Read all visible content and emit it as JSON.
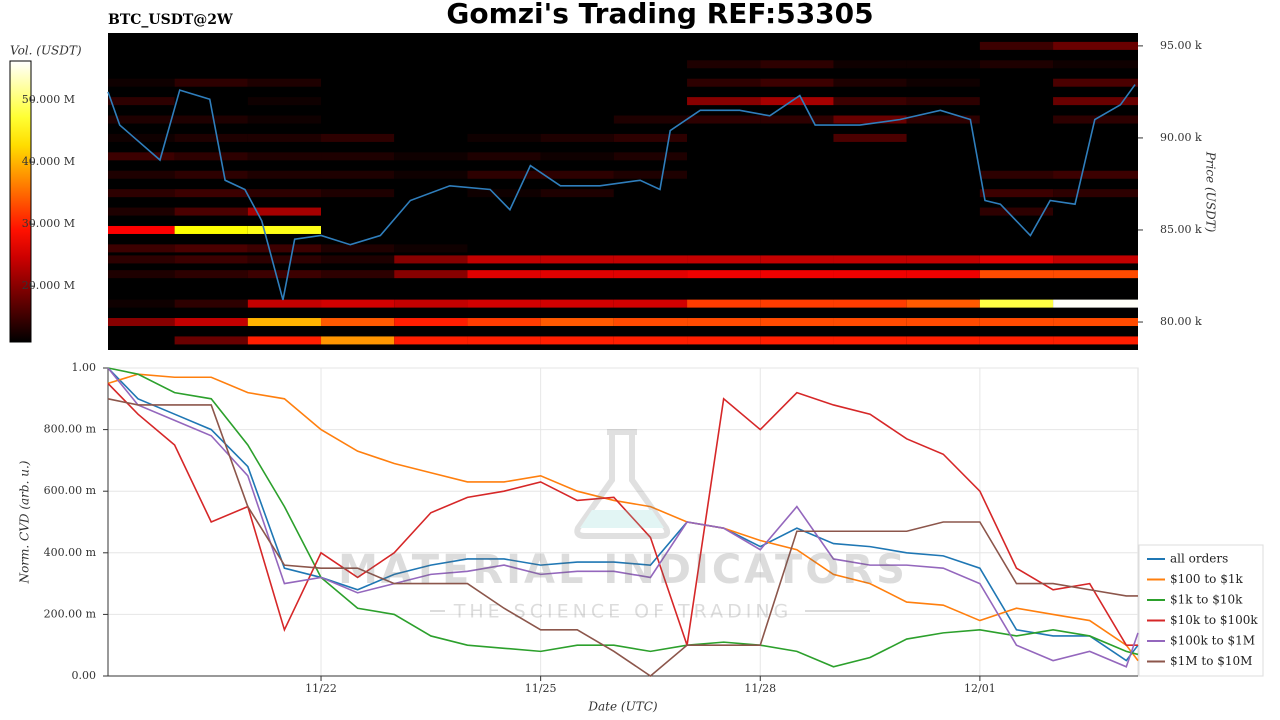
{
  "watermark": {
    "title": "MATERIAL INDICATORS",
    "subtitle": "THE SCIENCE OF TRADING"
  },
  "chart_data": [
    {
      "type": "heatmap",
      "title": "Gomzi's Trading REF:53305",
      "subtitle": "BTC_USDT@2W",
      "y_label": "Price (USDT)",
      "colorbar_label": "Vol. (USDT)",
      "colormap": "hot",
      "xlim": [
        -2.91,
        11.16
      ],
      "ylim": [
        78480,
        95700
      ],
      "yticks": [
        {
          "value": 80000,
          "label": "80.00 k"
        },
        {
          "value": 85000,
          "label": "85.00 k"
        },
        {
          "value": 90000,
          "label": "90.00 k"
        },
        {
          "value": 95000,
          "label": "95.00 k"
        }
      ],
      "zlim": [
        11000000,
        56300000
      ],
      "zticks": [
        {
          "value": 20000000,
          "label": "20.000 M"
        },
        {
          "value": 30000000,
          "label": "30.000 M"
        },
        {
          "value": 40000000,
          "label": "40.000 M"
        },
        {
          "value": 50000000,
          "label": "50.000 M"
        }
      ],
      "x_bins": [
        -2.91,
        -2,
        -1,
        0,
        1,
        2,
        3,
        4,
        5,
        6,
        7,
        8,
        9,
        10,
        11.16
      ],
      "y": [
        95000,
        94000,
        93000,
        92000,
        91000,
        90000,
        89000,
        88000,
        87000,
        86000,
        85000,
        84000,
        83400,
        82600,
        81000,
        80000,
        79000
      ],
      "z": [
        [
          0,
          0,
          0,
          0,
          0,
          0,
          0,
          0,
          0,
          0,
          0,
          0,
          15000000,
          18000000
        ],
        [
          0,
          0,
          0,
          0,
          0,
          0,
          0,
          0,
          13000000,
          14000000,
          12000000,
          12000000,
          13000000,
          12000000
        ],
        [
          12000000,
          14000000,
          13000000,
          0,
          0,
          0,
          0,
          0,
          14000000,
          15000000,
          13000000,
          12000000,
          0,
          16000000
        ],
        [
          14000000,
          0,
          12000000,
          0,
          0,
          0,
          0,
          0,
          20000000,
          22000000,
          15000000,
          14000000,
          0,
          18000000
        ],
        [
          13000000,
          13000000,
          12000000,
          0,
          0,
          0,
          0,
          13000000,
          14000000,
          14000000,
          18000000,
          14000000,
          0,
          14000000
        ],
        [
          12000000,
          13000000,
          13000000,
          14000000,
          0,
          12000000,
          13000000,
          14000000,
          0,
          0,
          16000000,
          0,
          0,
          0
        ],
        [
          15000000,
          14000000,
          13000000,
          13000000,
          12000000,
          13000000,
          12000000,
          13000000,
          0,
          0,
          0,
          0,
          0,
          0
        ],
        [
          13000000,
          14000000,
          13000000,
          13000000,
          12000000,
          14000000,
          14000000,
          13000000,
          0,
          0,
          0,
          0,
          14000000,
          15000000
        ],
        [
          14000000,
          15000000,
          14000000,
          13000000,
          0,
          12000000,
          13000000,
          0,
          0,
          0,
          0,
          0,
          15000000,
          14000000
        ],
        [
          13000000,
          16000000,
          22000000,
          0,
          0,
          0,
          0,
          0,
          0,
          0,
          0,
          0,
          14000000,
          0
        ],
        [
          28000000,
          45000000,
          46000000,
          0,
          0,
          0,
          0,
          0,
          0,
          0,
          0,
          0,
          0,
          0
        ],
        [
          15000000,
          16000000,
          15000000,
          13000000,
          12000000,
          0,
          0,
          0,
          0,
          0,
          0,
          0,
          0,
          0
        ],
        [
          14000000,
          15000000,
          14000000,
          13000000,
          20000000,
          24000000,
          24000000,
          24000000,
          24000000,
          24000000,
          24000000,
          24000000,
          26000000,
          24000000
        ],
        [
          13000000,
          14000000,
          15000000,
          14000000,
          20000000,
          26000000,
          26000000,
          26000000,
          27000000,
          27000000,
          27000000,
          27000000,
          33000000,
          33000000
        ],
        [
          12000000,
          14000000,
          24000000,
          25000000,
          24000000,
          25000000,
          25000000,
          25000000,
          32000000,
          32000000,
          32000000,
          34000000,
          48000000,
          56000000
        ],
        [
          20000000,
          24000000,
          40000000,
          34000000,
          30000000,
          32000000,
          34000000,
          33000000,
          33000000,
          33000000,
          33000000,
          33000000,
          33000000,
          33000000
        ],
        [
          0,
          18000000,
          30000000,
          38000000,
          30000000,
          30000000,
          30000000,
          30000000,
          30000000,
          30000000,
          30000000,
          30000000,
          30000000,
          30000000
        ]
      ],
      "color": "#2f7ebc",
      "x": [
        -2.91,
        -2.75,
        -2.2,
        -1.93,
        -1.52,
        -1.31,
        -1.04,
        -0.81,
        -0.52,
        -0.36,
        0,
        0.4,
        0.81,
        1.22,
        1.76,
        2.31,
        2.58,
        2.86,
        3.27,
        3.81,
        4.36,
        4.63,
        4.77,
        5.18,
        5.72,
        6.13,
        6.54,
        6.75,
        7.36,
        7.91,
        8.46,
        8.87,
        9.07,
        9.28,
        9.69,
        9.96,
        10.3,
        10.57,
        10.92,
        11.12
      ],
      "values": [
        92500,
        90700,
        88800,
        92600,
        92100,
        87700,
        87200,
        85500,
        81200,
        84500,
        84700,
        84200,
        84700,
        86600,
        87400,
        87200,
        86100,
        88500,
        87400,
        87400,
        87700,
        87200,
        90400,
        91500,
        91500,
        91200,
        92300,
        90700,
        90700,
        91000,
        91500,
        91000,
        86600,
        86400,
        84700,
        86600,
        86400,
        91000,
        91800,
        92900
      ]
    },
    {
      "type": "line",
      "x_label": "Date (UTC)",
      "y_label": "Norm. CVD (arb. u.)",
      "grid": true,
      "legend": "lower right",
      "xlim": [
        -2.91,
        11.16
      ],
      "ylim": [
        0,
        1
      ],
      "xticks": [
        {
          "value": 0,
          "label": "11/22"
        },
        {
          "value": 3,
          "label": "11/25"
        },
        {
          "value": 6,
          "label": "11/28"
        },
        {
          "value": 9,
          "label": "12/01"
        }
      ],
      "yticks": [
        {
          "value": 0,
          "label": "0.00"
        },
        {
          "value": 0.2,
          "label": "200.00 m"
        },
        {
          "value": 0.4,
          "label": "400.00 m"
        },
        {
          "value": 0.6,
          "label": "600.00 m"
        },
        {
          "value": 0.8,
          "label": "800.00 m"
        },
        {
          "value": 1,
          "label": "1.00"
        }
      ],
      "x": [
        -2.91,
        -2.5,
        -2,
        -1.5,
        -1,
        -0.5,
        0,
        0.5,
        1,
        1.5,
        2,
        2.5,
        3,
        3.5,
        4,
        4.5,
        5,
        5.5,
        6,
        6.5,
        7,
        7.5,
        8,
        8.5,
        9,
        9.5,
        10,
        10.5,
        11,
        11.16
      ],
      "series": [
        {
          "name": "all orders",
          "color": "#1f77b4",
          "values": [
            1.0,
            0.9,
            0.85,
            0.8,
            0.68,
            0.35,
            0.32,
            0.28,
            0.33,
            0.36,
            0.38,
            0.38,
            0.36,
            0.37,
            0.37,
            0.36,
            0.5,
            0.48,
            0.42,
            0.48,
            0.43,
            0.42,
            0.4,
            0.39,
            0.35,
            0.15,
            0.13,
            0.13,
            0.05,
            0.1
          ]
        },
        {
          "name": "$100 to $1k",
          "color": "#ff7f0e",
          "values": [
            0.95,
            0.98,
            0.97,
            0.97,
            0.92,
            0.9,
            0.8,
            0.73,
            0.69,
            0.66,
            0.63,
            0.63,
            0.65,
            0.6,
            0.57,
            0.55,
            0.5,
            0.48,
            0.44,
            0.41,
            0.33,
            0.3,
            0.24,
            0.23,
            0.18,
            0.22,
            0.2,
            0.18,
            0.1,
            0.05
          ]
        },
        {
          "name": "$1k to $10k",
          "color": "#2ca02c",
          "values": [
            1.0,
            0.98,
            0.92,
            0.9,
            0.75,
            0.55,
            0.32,
            0.22,
            0.2,
            0.13,
            0.1,
            0.09,
            0.08,
            0.1,
            0.1,
            0.08,
            0.1,
            0.11,
            0.1,
            0.08,
            0.03,
            0.06,
            0.12,
            0.14,
            0.15,
            0.13,
            0.15,
            0.13,
            0.08,
            0.07
          ]
        },
        {
          "name": "$10k to $100k",
          "color": "#d62728",
          "values": [
            0.95,
            0.85,
            0.75,
            0.5,
            0.55,
            0.15,
            0.4,
            0.32,
            0.4,
            0.53,
            0.58,
            0.6,
            0.63,
            0.57,
            0.58,
            0.45,
            0.1,
            0.9,
            0.8,
            0.92,
            0.88,
            0.85,
            0.77,
            0.72,
            0.6,
            0.35,
            0.28,
            0.3,
            0.1,
            0.1
          ]
        },
        {
          "name": "$100k to $1M",
          "color": "#9467bd",
          "values": [
            1.0,
            0.88,
            0.83,
            0.78,
            0.65,
            0.3,
            0.32,
            0.27,
            0.3,
            0.33,
            0.34,
            0.36,
            0.33,
            0.34,
            0.34,
            0.32,
            0.5,
            0.48,
            0.41,
            0.55,
            0.38,
            0.36,
            0.36,
            0.35,
            0.3,
            0.1,
            0.05,
            0.08,
            0.03,
            0.14
          ]
        },
        {
          "name": "$1M to $10M",
          "color": "#8c564b",
          "values": [
            0.9,
            0.88,
            0.88,
            0.88,
            0.55,
            0.36,
            0.35,
            0.35,
            0.3,
            0.3,
            0.3,
            0.22,
            0.15,
            0.15,
            0.08,
            0.0,
            0.1,
            0.1,
            0.1,
            0.47,
            0.47,
            0.47,
            0.47,
            0.5,
            0.5,
            0.3,
            0.3,
            0.28,
            0.26,
            0.26
          ]
        }
      ]
    }
  ]
}
